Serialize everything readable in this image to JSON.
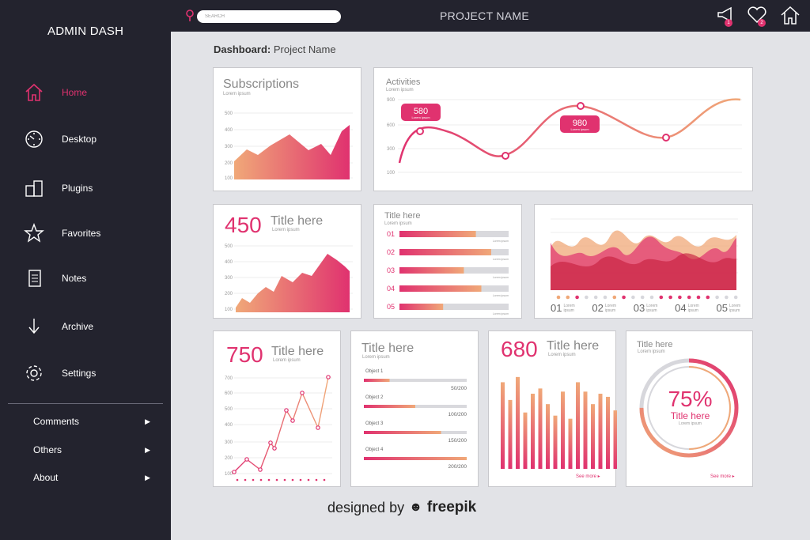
{
  "sidebar": {
    "brand": "ADMIN DASH",
    "items": [
      {
        "label": "Home",
        "icon": "home-icon"
      },
      {
        "label": "Desktop",
        "icon": "dashboard-icon"
      },
      {
        "label": "Plugins",
        "icon": "plugins-icon"
      },
      {
        "label": "Favorites",
        "icon": "star-icon"
      },
      {
        "label": "Notes",
        "icon": "notes-icon"
      },
      {
        "label": "Archive",
        "icon": "download-icon"
      },
      {
        "label": "Settings",
        "icon": "gear-icon"
      }
    ],
    "sub_items": [
      {
        "label": "Comments"
      },
      {
        "label": "Others"
      },
      {
        "label": "About"
      }
    ]
  },
  "topbar": {
    "search_placeholder": "SEARCH",
    "project_name": "PROJECT NAME",
    "notifications_badge": "1",
    "favorites_badge": "2"
  },
  "breadcrumb": {
    "bold": "Dashboard:",
    "rest": " Project Name"
  },
  "cards": {
    "subscriptions": {
      "title": "Subscriptions",
      "sub": "Lorem ipsum",
      "ticks": [
        "500",
        "400",
        "300",
        "200",
        "100"
      ]
    },
    "activities": {
      "title": "Activities",
      "sub": "Lorem ipsum",
      "ticks": [
        "900",
        "600",
        "300",
        "100"
      ],
      "callout1": "580",
      "callout1_sub": "Lorem ipsum",
      "callout2": "980",
      "callout2_sub": "Lorem ipsum"
    },
    "c450": {
      "number": "450",
      "title": "Title here",
      "sub": "Lorem ipsum",
      "ticks": [
        "500",
        "400",
        "300",
        "200",
        "100"
      ]
    },
    "bars_list": {
      "title": "Title here",
      "sub": "Lorem ipsum",
      "rows": [
        {
          "label": "01",
          "value": 0.7
        },
        {
          "label": "02",
          "value": 0.84
        },
        {
          "label": "03",
          "value": 0.59
        },
        {
          "label": "04",
          "value": 0.75
        },
        {
          "label": "05",
          "value": 0.4
        }
      ],
      "row_note": "Lorem ipsum"
    },
    "wave": {
      "labels": [
        {
          "n": "01",
          "s": "Lorem ipsum"
        },
        {
          "n": "02",
          "s": "Lorem ipsum"
        },
        {
          "n": "03",
          "s": "Lorem ipsum"
        },
        {
          "n": "04",
          "s": "Lorem ipsum"
        },
        {
          "n": "05",
          "s": "Lorem ipsum"
        }
      ]
    },
    "c750": {
      "number": "750",
      "title": "Title here",
      "sub": "Lorem ipsum",
      "ticks": [
        "700",
        "600",
        "500",
        "400",
        "300",
        "200",
        "100"
      ]
    },
    "objects": {
      "title": "Title here",
      "sub": "Lorem ipsum",
      "rows": [
        {
          "label": "Object 1",
          "value": "50/200",
          "frac": 0.25
        },
        {
          "label": "Object 2",
          "value": "100/200",
          "frac": 0.5
        },
        {
          "label": "Object 3",
          "value": "150/200",
          "frac": 0.75
        },
        {
          "label": "Object 4",
          "value": "200/200",
          "frac": 1.0
        }
      ]
    },
    "c680": {
      "number": "680",
      "title": "Title here",
      "sub": "Lorem ipsum",
      "see_more": "See more ▸"
    },
    "donut": {
      "title": "Title here",
      "sub": "Lorem ipsum",
      "percent": "75%",
      "inner_title": "Title here",
      "inner_sub": "Lorem ipsum",
      "see_more": "See more ▸",
      "value": 0.75
    }
  },
  "footer": {
    "designed": "designed by",
    "brand": "freepik"
  },
  "colors": {
    "sidebar": "#23232e",
    "accent": "#e0326f",
    "peach": "#f0a878",
    "bg": "#e2e3e7"
  }
}
